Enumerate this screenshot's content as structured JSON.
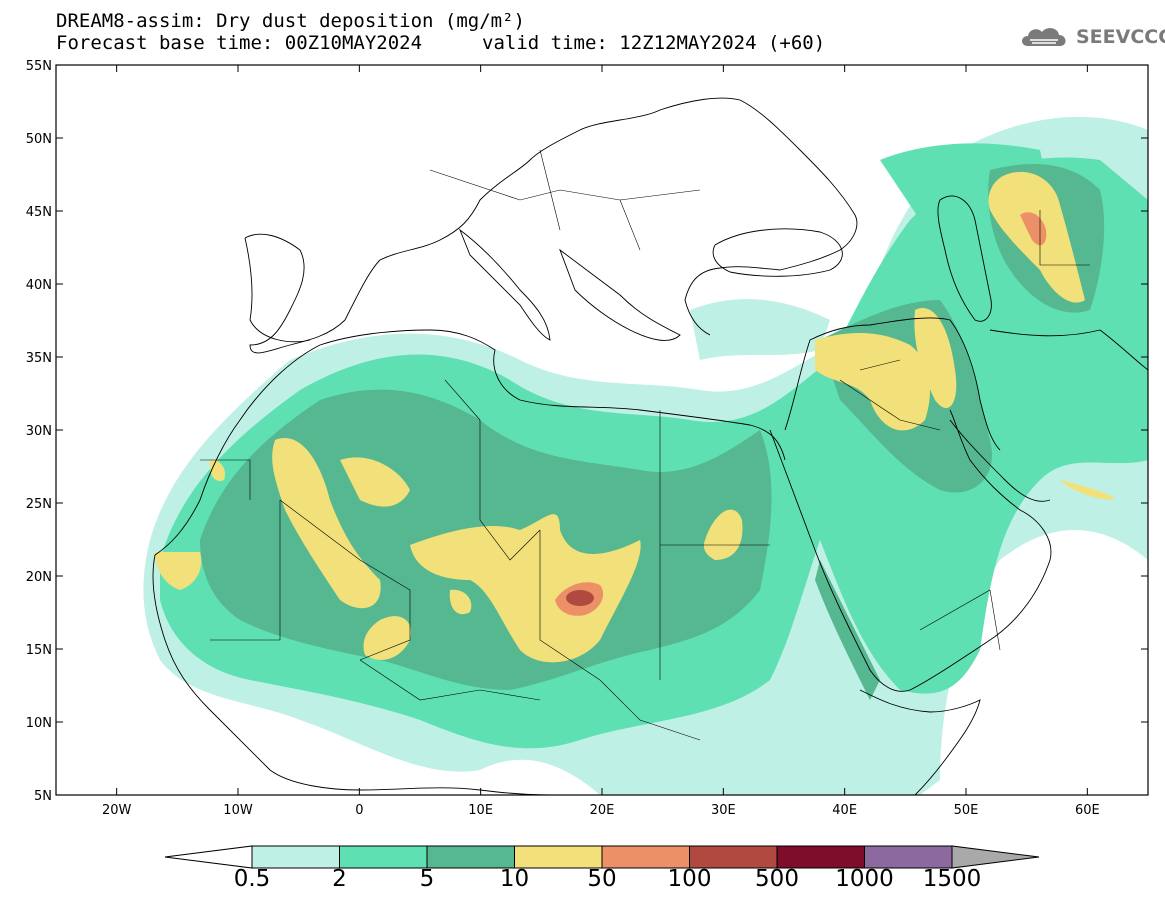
{
  "title": {
    "line1": "DREAM8-assim: Dry dust deposition (mg/m²)",
    "line2": "Forecast base time: 00Z10MAY2024",
    "valid": "valid time: 12Z12MAY2024 (+60)"
  },
  "logo": {
    "text": "SEEVCCC",
    "icon": "cloud-icon",
    "color": "#7a7a7a"
  },
  "map": {
    "lat_ticks": [
      "55N",
      "50N",
      "45N",
      "40N",
      "35N",
      "30N",
      "25N",
      "20N",
      "15N",
      "10N",
      "5N"
    ],
    "lon_ticks": [
      "20W",
      "10W",
      "0",
      "10E",
      "20E",
      "30E",
      "40E",
      "50E",
      "60E"
    ],
    "lat_range": [
      5,
      55
    ],
    "lon_range": [
      -25,
      65
    ]
  },
  "legend": {
    "labels": [
      "0.5",
      "2",
      "5",
      "10",
      "50",
      "100",
      "500",
      "1000",
      "1500"
    ],
    "colors": [
      "#bff0e6",
      "#5fe0b3",
      "#55b890",
      "#f2e07a",
      "#ec9068",
      "#b04a40",
      "#7d0d2a",
      "#8c6aa0",
      "#a9a9a9"
    ],
    "under_color": "#ffffff",
    "over_color": "#a9a9a9"
  }
}
